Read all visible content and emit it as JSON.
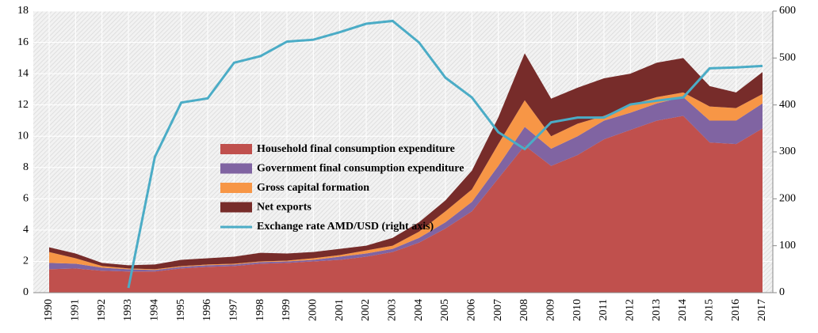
{
  "chart_data": {
    "type": "area",
    "categories": [
      "1990",
      "1991",
      "1992",
      "1993",
      "1994",
      "1995",
      "1996",
      "1997",
      "1998",
      "1999",
      "2000",
      "2001",
      "2002",
      "2003",
      "2004",
      "2005",
      "2006",
      "2007",
      "2008",
      "2009",
      "2010",
      "2011",
      "2012",
      "2013",
      "2014",
      "2015",
      "2016",
      "2017"
    ],
    "series": [
      {
        "name": "Household final consumption expenditure",
        "color": "#c0504d",
        "values": [
          1.5,
          1.55,
          1.4,
          1.35,
          1.35,
          1.55,
          1.65,
          1.7,
          1.85,
          1.9,
          2.0,
          2.1,
          2.3,
          2.6,
          3.2,
          4.1,
          5.2,
          7.3,
          9.4,
          8.1,
          8.8,
          9.8,
          10.4,
          11.0,
          11.3,
          9.6,
          9.5,
          10.5
        ]
      },
      {
        "name": "Government final consumption expenditure",
        "color": "#8064a2",
        "values": [
          0.4,
          0.3,
          0.2,
          0.15,
          0.1,
          0.1,
          0.1,
          0.1,
          0.1,
          0.1,
          0.1,
          0.2,
          0.2,
          0.2,
          0.3,
          0.4,
          0.6,
          0.8,
          1.2,
          1.1,
          1.2,
          1.2,
          1.1,
          1.1,
          1.2,
          1.4,
          1.5,
          1.6
        ]
      },
      {
        "name": "Gross capital formation",
        "color": "#f79646",
        "values": [
          0.7,
          0.35,
          0.1,
          0.05,
          0.05,
          0.05,
          0.05,
          0.05,
          0.05,
          0.05,
          0.1,
          0.1,
          0.2,
          0.2,
          0.4,
          0.7,
          0.8,
          1.4,
          1.7,
          0.8,
          0.8,
          0.3,
          0.5,
          0.4,
          0.3,
          0.9,
          0.8,
          0.6
        ]
      },
      {
        "name": "Net exports",
        "color": "#772c2a",
        "values": [
          0.3,
          0.3,
          0.2,
          0.2,
          0.3,
          0.4,
          0.4,
          0.45,
          0.55,
          0.45,
          0.4,
          0.4,
          0.3,
          0.5,
          0.6,
          0.7,
          1.2,
          1.7,
          3.0,
          2.4,
          2.3,
          2.4,
          2.0,
          2.2,
          2.2,
          1.3,
          1.0,
          1.4
        ]
      },
      {
        "name": "Exchange rate AMD/USD (right axis)",
        "color": "#4bacc6",
        "type": "line",
        "axis": "y2",
        "values": [
          null,
          null,
          null,
          10,
          289,
          405,
          414,
          490,
          504,
          535,
          539,
          555,
          573,
          579,
          533,
          458,
          416,
          342,
          306,
          363,
          373,
          373,
          401,
          409,
          416,
          478,
          480,
          483
        ]
      }
    ],
    "ylim": [
      0,
      18
    ],
    "yticks": [
      0,
      2,
      4,
      6,
      8,
      10,
      12,
      14,
      16,
      18
    ],
    "y2lim": [
      0,
      600
    ],
    "y2ticks": [
      0,
      100,
      200,
      300,
      400,
      500,
      600
    ],
    "grid": true
  }
}
